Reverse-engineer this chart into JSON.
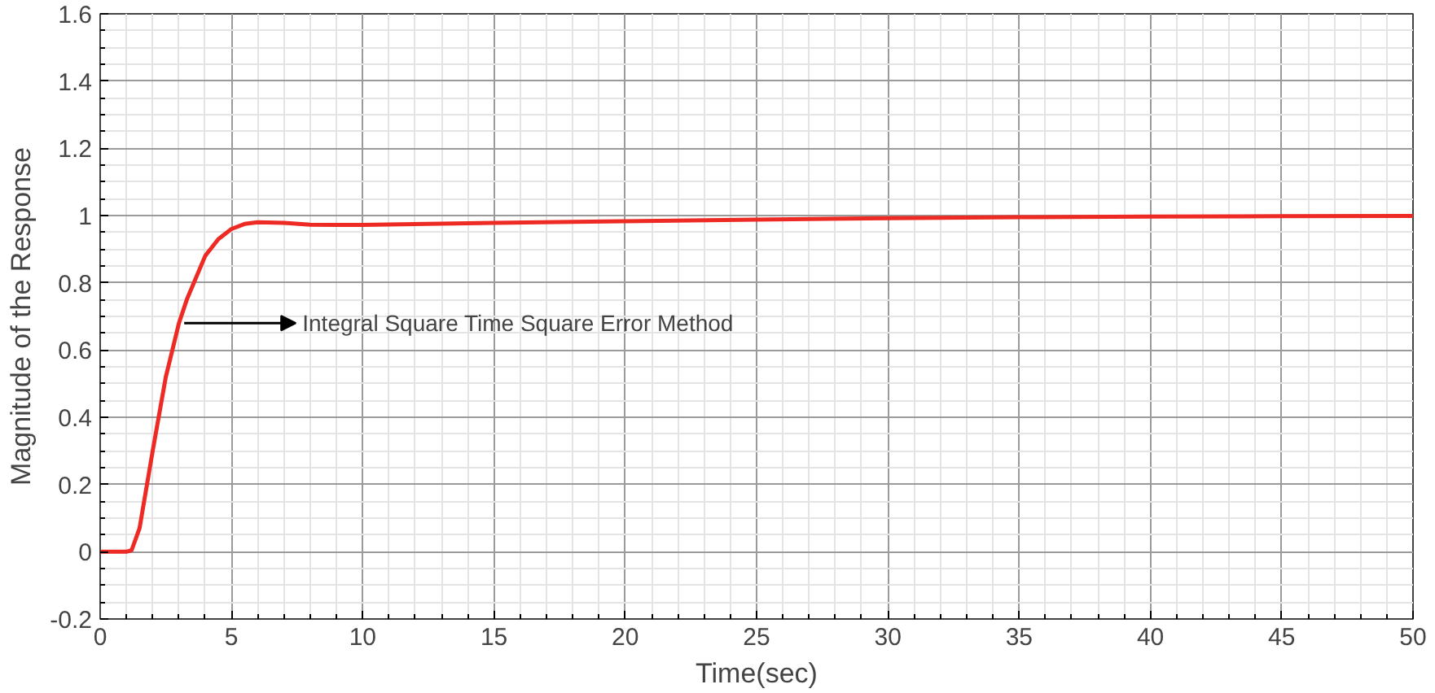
{
  "chart_data": {
    "type": "line",
    "xlabel": "Time(sec)",
    "ylabel": "Magnitude of the Response",
    "x": [
      0,
      1,
      1.2,
      1.5,
      2,
      2.5,
      3,
      3.3,
      4,
      4.5,
      5,
      5.5,
      6,
      7,
      8,
      9,
      10,
      15,
      20,
      25,
      30,
      35,
      40,
      45,
      50
    ],
    "series": [
      {
        "color": "#ee2a24",
        "values": [
          0,
          0,
          0.005,
          0.07,
          0.3,
          0.52,
          0.68,
          0.75,
          0.88,
          0.93,
          0.96,
          0.975,
          0.98,
          0.978,
          0.973,
          0.972,
          0.972,
          0.978,
          0.983,
          0.988,
          0.992,
          0.995,
          0.997,
          0.998,
          0.999
        ]
      }
    ],
    "xlim": [
      0,
      50
    ],
    "xticks": [
      0,
      5,
      10,
      15,
      20,
      25,
      30,
      35,
      40,
      45,
      50
    ],
    "ylim": [
      -0.2,
      1.6
    ],
    "yticks": [
      {
        "value": -0.2,
        "label": "-0.2"
      },
      0,
      {
        "value": 0.2,
        "label": "0.2"
      },
      {
        "value": 0.4,
        "label": "0.4"
      },
      {
        "value": 0.6,
        "label": "0.6"
      },
      {
        "value": 0.8,
        "label": "0.8"
      },
      1,
      {
        "value": 1.2,
        "label": "1.2"
      },
      {
        "value": 1.4,
        "label": "1.4"
      },
      {
        "value": 1.6,
        "label": "1.6"
      }
    ],
    "grid": true,
    "marker": "none",
    "line_style": "solid",
    "annotations": [
      {
        "text": "Integral Square Time Square Error Method",
        "x": 3.2,
        "y": 0.68
      }
    ]
  }
}
